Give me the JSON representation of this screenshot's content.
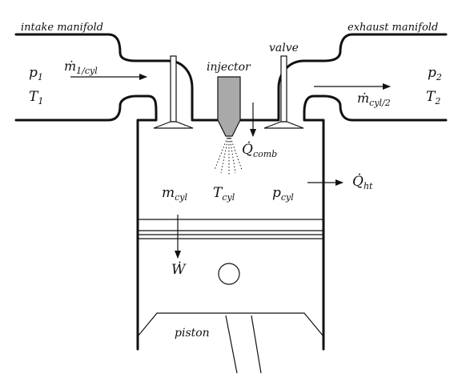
{
  "labels": {
    "intake_manifold": "intake manifold",
    "exhaust_manifold": "exhaust manifold",
    "injector": "injector",
    "valve": "valve",
    "piston": "piston"
  },
  "symbols": {
    "p1": {
      "base": "p",
      "sub": "1"
    },
    "T1": {
      "base": "T",
      "sub": "1"
    },
    "p2": {
      "base": "p",
      "sub": "2"
    },
    "T2": {
      "base": "T",
      "sub": "2"
    },
    "m_in": {
      "base": "ṁ",
      "sub": "1/cyl"
    },
    "m_out": {
      "base": "ṁ",
      "sub": "cyl/2"
    },
    "Q_comb": {
      "base": "Q̇",
      "sub": "comb"
    },
    "Q_ht": {
      "base": "Q̇",
      "sub": "ht"
    },
    "m_cyl": {
      "base": "m",
      "sub": "cyl"
    },
    "T_cyl": {
      "base": "T",
      "sub": "cyl"
    },
    "p_cyl": {
      "base": "p",
      "sub": "cyl"
    },
    "W": {
      "base": "Ẇ",
      "sub": ""
    }
  },
  "colors": {
    "ink": "#111111",
    "injector_fill": "#a9a9a9"
  }
}
